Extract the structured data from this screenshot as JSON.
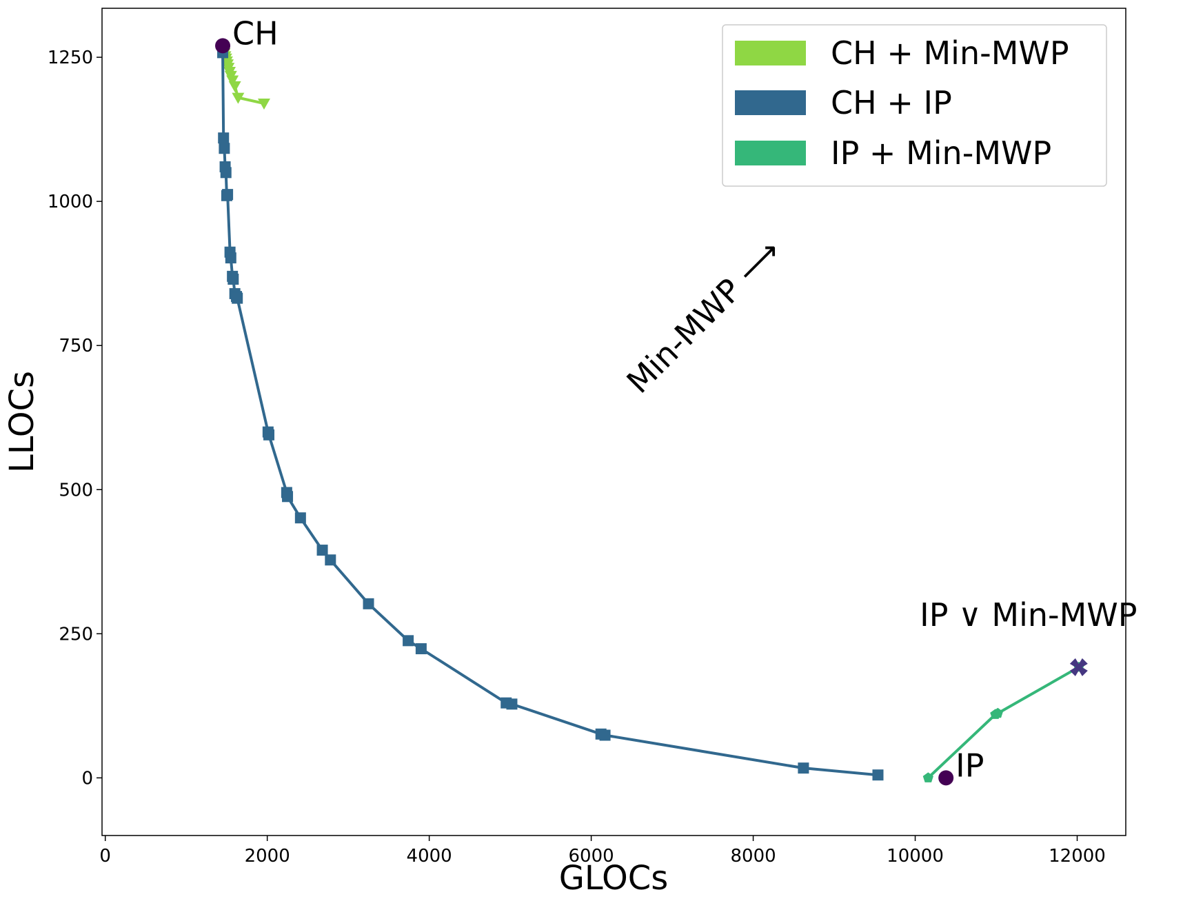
{
  "chart_data": {
    "type": "line",
    "xlabel": "GLOCs",
    "ylabel": "LLOCs",
    "xlim": [
      -40,
      12600
    ],
    "ylim": [
      -100,
      1335
    ],
    "xticks": [
      0,
      2000,
      4000,
      6000,
      8000,
      10000,
      12000
    ],
    "yticks": [
      0,
      250,
      500,
      750,
      1000,
      1250
    ],
    "grid": false,
    "legend_position": "top-right",
    "series": [
      {
        "name": "CH + Min-MWP",
        "color": "#8fd744",
        "marker": "triangle-down",
        "x": [
          1450,
          1460,
          1470,
          1480,
          1490,
          1500,
          1510,
          1520,
          1535,
          1550,
          1570,
          1600,
          1640,
          1960
        ],
        "y": [
          1270,
          1262,
          1257,
          1252,
          1248,
          1243,
          1238,
          1232,
          1225,
          1218,
          1210,
          1200,
          1180,
          1170
        ]
      },
      {
        "name": "CH + IP",
        "color": "#31688e",
        "marker": "square",
        "x": [
          1450,
          1460,
          1470,
          1480,
          1490,
          1500,
          1510,
          1540,
          1550,
          1570,
          1580,
          1600,
          1620,
          1630,
          2010,
          2020,
          2240,
          2250,
          2410,
          2680,
          2780,
          3250,
          3740,
          3900,
          4950,
          5020,
          6120,
          6170,
          8620,
          9540
        ],
        "y": [
          1258,
          1110,
          1092,
          1060,
          1050,
          1010,
          1012,
          912,
          902,
          870,
          865,
          840,
          835,
          832,
          600,
          595,
          495,
          488,
          451,
          395,
          378,
          302,
          238,
          224,
          130,
          128,
          76,
          74,
          17,
          5
        ]
      },
      {
        "name": "IP + Min-MWP",
        "color": "#35b779",
        "marker": "pentagon",
        "x": [
          10160,
          10990,
          11020,
          12020
        ],
        "y": [
          0,
          110,
          112,
          192
        ]
      }
    ],
    "points": [
      {
        "label": "CH",
        "x": 1450,
        "y": 1270,
        "color": "#440154",
        "marker": "circle"
      },
      {
        "label": "IP",
        "x": 10380,
        "y": 0,
        "color": "#440154",
        "marker": "circle"
      },
      {
        "label": "IP ∨ Min-MWP",
        "x": 12020,
        "y": 192,
        "color": "#453781",
        "marker": "x"
      }
    ],
    "annotations": [
      {
        "text": "Min-MWP ⟶",
        "angle": -45,
        "x": 7700,
        "y": 880
      }
    ]
  }
}
